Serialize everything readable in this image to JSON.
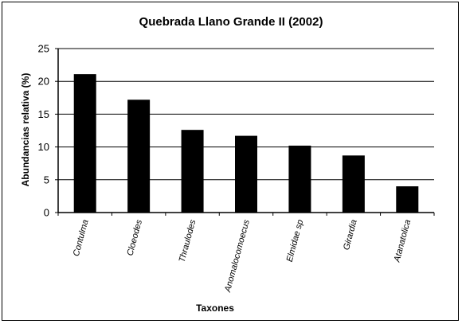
{
  "chart_data": {
    "type": "bar",
    "title": "Quebrada Llano Grande II (2002)",
    "xlabel": "Taxones",
    "ylabel": "Abundancias relativa (%)",
    "categories": [
      "Contulma",
      "Cloeodes",
      "Thraulodes",
      "Anomalocomoecus",
      "Elmidae sp",
      "Girardia",
      "Atanatolica"
    ],
    "values": [
      21.1,
      17.2,
      12.6,
      11.7,
      10.2,
      8.7,
      4.0
    ],
    "ylim": [
      0,
      25
    ],
    "yticks": [
      0,
      5,
      10,
      15,
      20,
      25
    ],
    "ytick_labels": [
      "0",
      "5",
      "10",
      "15",
      "20",
      "25"
    ],
    "grid": true,
    "bar_color": "#000000",
    "legend": false
  }
}
